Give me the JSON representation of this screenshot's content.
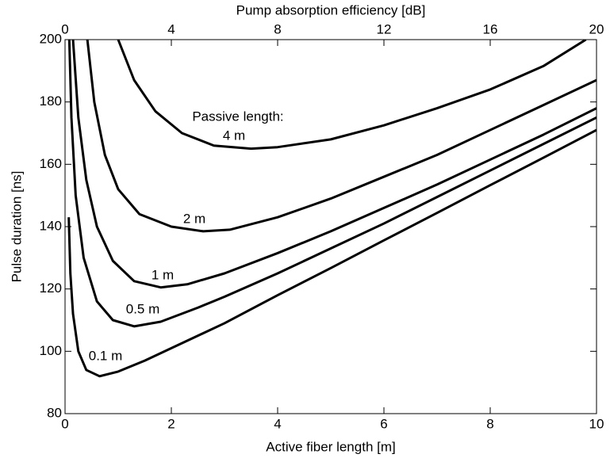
{
  "chart_data": {
    "type": "line",
    "xlabel": "Active fiber length [m]",
    "ylabel": "Pulse duration [ns]",
    "x2label": "Pump absorption efficiency [dB]",
    "annotation": "Passive length:",
    "xlim": [
      0,
      10
    ],
    "xticks": [
      0,
      2,
      4,
      6,
      8,
      10
    ],
    "x2lim": [
      0,
      20
    ],
    "x2ticks": [
      0,
      4,
      8,
      12,
      16,
      20
    ],
    "ylim": [
      80,
      200
    ],
    "yticks": [
      80,
      100,
      120,
      140,
      160,
      180,
      200
    ],
    "grid": false,
    "series": [
      {
        "name": "0.1 m",
        "color": "#000000",
        "x": [
          0.07,
          0.1,
          0.15,
          0.25,
          0.4,
          0.65,
          1,
          1.5,
          2,
          3,
          4,
          5,
          6,
          7,
          8,
          9,
          10
        ],
        "values": [
          143,
          125,
          112,
          100,
          94,
          92,
          93.5,
          97,
          101,
          109,
          118,
          126.7,
          135.6,
          144.4,
          153.3,
          162.1,
          171
        ]
      },
      {
        "name": "0.5 m",
        "color": "#000000",
        "x": [
          0.08,
          0.12,
          0.2,
          0.35,
          0.6,
          0.9,
          1.3,
          1.8,
          2.5,
          3,
          4,
          5,
          6,
          7,
          8,
          9,
          10
        ],
        "values": [
          200,
          175,
          150,
          130,
          116,
          110,
          108,
          109.5,
          114,
          117.5,
          125,
          133,
          141,
          149.5,
          158,
          166.5,
          175
        ]
      },
      {
        "name": "1 m",
        "color": "#000000",
        "x": [
          0.15,
          0.25,
          0.4,
          0.6,
          0.9,
          1.3,
          1.8,
          2.3,
          3,
          4,
          5,
          6,
          7,
          8,
          9,
          10
        ],
        "values": [
          200,
          175,
          155,
          140,
          129,
          122.5,
          120.5,
          121.5,
          125,
          131.5,
          138.5,
          146,
          153.5,
          161.5,
          169.5,
          178
        ]
      },
      {
        "name": "2 m",
        "color": "#000000",
        "x": [
          0.42,
          0.55,
          0.75,
          1,
          1.4,
          2,
          2.6,
          3.1,
          4,
          5,
          6,
          7,
          8,
          9,
          10
        ],
        "values": [
          200,
          180,
          163,
          152,
          144,
          140,
          138.5,
          139,
          143,
          149,
          156,
          163,
          171,
          179,
          187
        ]
      },
      {
        "name": "4 m",
        "color": "#000000",
        "x": [
          1,
          1.3,
          1.7,
          2.2,
          2.8,
          3.5,
          4,
          5,
          6,
          7,
          8,
          9,
          9.8
        ],
        "values": [
          200,
          187,
          177,
          170,
          166,
          165,
          165.5,
          168,
          172.5,
          178,
          184,
          191.5,
          200
        ]
      }
    ]
  }
}
